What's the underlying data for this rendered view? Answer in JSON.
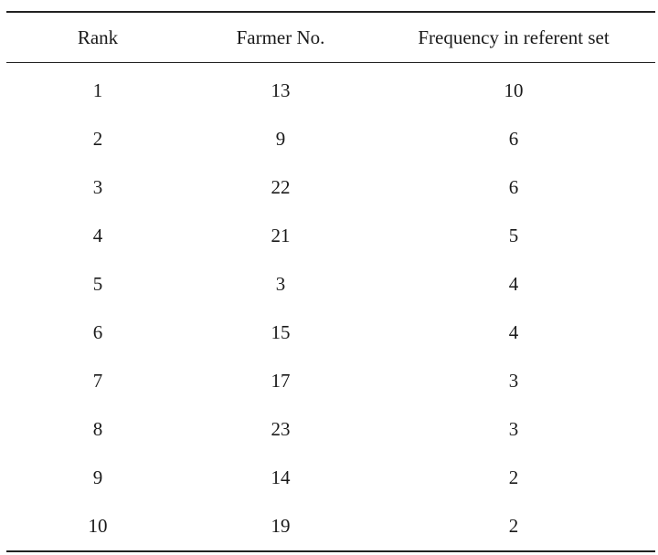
{
  "table": {
    "headers": [
      "Rank",
      "Farmer No.",
      "Frequency in referent set"
    ],
    "rows": [
      [
        "1",
        "13",
        "10"
      ],
      [
        "2",
        "9",
        "6"
      ],
      [
        "3",
        "22",
        "6"
      ],
      [
        "4",
        "21",
        "5"
      ],
      [
        "5",
        "3",
        "4"
      ],
      [
        "6",
        "15",
        "4"
      ],
      [
        "7",
        "17",
        "3"
      ],
      [
        "8",
        "23",
        "3"
      ],
      [
        "9",
        "14",
        "2"
      ],
      [
        "10",
        "19",
        "2"
      ]
    ]
  }
}
